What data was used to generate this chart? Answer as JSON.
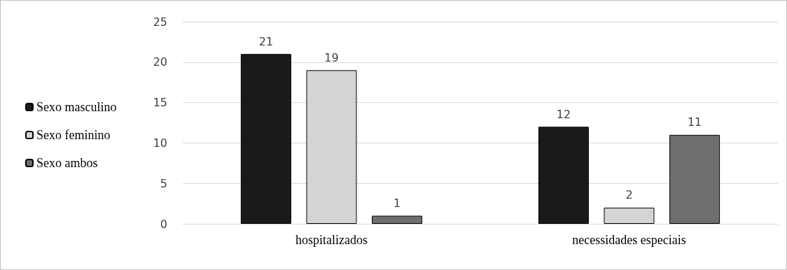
{
  "chart_data": {
    "type": "bar",
    "categories": [
      "hospitalizados",
      "necessidades especiais"
    ],
    "series": [
      {
        "name": "Sexo masculino",
        "color": "#1a1a1a",
        "values": [
          21,
          12
        ]
      },
      {
        "name": "Sexo feminino",
        "color": "#d4d4d4",
        "values": [
          19,
          2
        ]
      },
      {
        "name": "Sexo ambos",
        "color": "#6e6e6e",
        "values": [
          1,
          11
        ]
      }
    ],
    "ylim": [
      0,
      25
    ],
    "yticks": [
      0,
      5,
      10,
      15,
      20,
      25
    ],
    "grid": "y",
    "legend": "left",
    "data_labels": true
  }
}
